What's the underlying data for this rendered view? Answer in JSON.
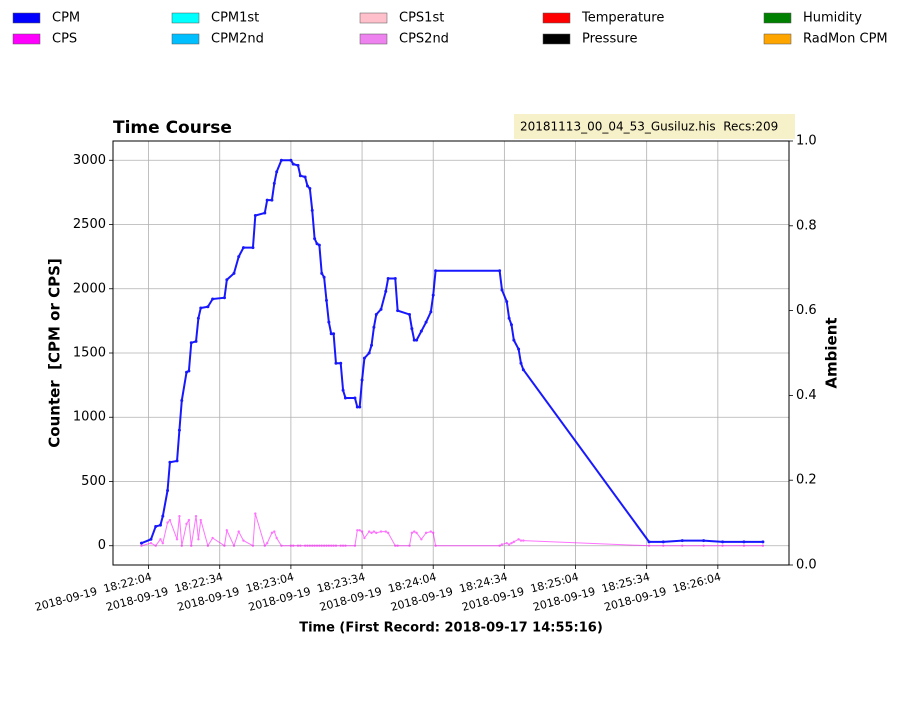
{
  "chart_data": {
    "type": "line",
    "title": "Time Course",
    "file_info": "20181113_00_04_53_Gusiluz.his  Recs:209",
    "xlabel": "Time (First Record: 2018-09-17 14:55:16)",
    "ylabel": "Counter  [CPM or CPS]",
    "y2label": "Ambient",
    "grid": true,
    "x": [
      "2018-09-19 18:22:01",
      "2018-09-19 18:22:05",
      "2018-09-19 18:22:07",
      "2018-09-19 18:22:09",
      "2018-09-19 18:22:10",
      "2018-09-19 18:22:12",
      "2018-09-19 18:22:13",
      "2018-09-19 18:22:16",
      "2018-09-19 18:22:17",
      "2018-09-19 18:22:18",
      "2018-09-19 18:22:20",
      "2018-09-19 18:22:21",
      "2018-09-19 18:22:22",
      "2018-09-19 18:22:24",
      "2018-09-19 18:22:25",
      "2018-09-19 18:22:26",
      "2018-09-19 18:22:29",
      "2018-09-19 18:22:31",
      "2018-09-19 18:22:36",
      "2018-09-19 18:22:37",
      "2018-09-19 18:22:40",
      "2018-09-19 18:22:42",
      "2018-09-19 18:22:44",
      "2018-09-19 18:22:48",
      "2018-09-19 18:22:49",
      "2018-09-19 18:22:53",
      "2018-09-19 18:22:54",
      "2018-09-19 18:22:56",
      "2018-09-19 18:22:57",
      "2018-09-19 18:22:58",
      "2018-09-19 18:23:00",
      "2018-09-19 18:23:04",
      "2018-09-19 18:23:05",
      "2018-09-19 18:23:07",
      "2018-09-19 18:23:08",
      "2018-09-19 18:23:10",
      "2018-09-19 18:23:11",
      "2018-09-19 18:23:12",
      "2018-09-19 18:23:13",
      "2018-09-19 18:23:14",
      "2018-09-19 18:23:15",
      "2018-09-19 18:23:16",
      "2018-09-19 18:23:17",
      "2018-09-19 18:23:18",
      "2018-09-19 18:23:19",
      "2018-09-19 18:23:20",
      "2018-09-19 18:23:21",
      "2018-09-19 18:23:22",
      "2018-09-19 18:23:23",
      "2018-09-19 18:23:25",
      "2018-09-19 18:23:26",
      "2018-09-19 18:23:27",
      "2018-09-19 18:23:31",
      "2018-09-19 18:23:32",
      "2018-09-19 18:23:33",
      "2018-09-19 18:23:34",
      "2018-09-19 18:23:35",
      "2018-09-19 18:23:37",
      "2018-09-19 18:23:38",
      "2018-09-19 18:23:39",
      "2018-09-19 18:23:40",
      "2018-09-19 18:23:42",
      "2018-09-19 18:23:44",
      "2018-09-19 18:23:45",
      "2018-09-19 18:23:48",
      "2018-09-19 18:23:49",
      "2018-09-19 18:23:54",
      "2018-09-19 18:23:55",
      "2018-09-19 18:23:56",
      "2018-09-19 18:23:57",
      "2018-09-19 18:23:59",
      "2018-09-19 18:24:01",
      "2018-09-19 18:24:03",
      "2018-09-19 18:24:04",
      "2018-09-19 18:24:05",
      "2018-09-19 18:24:32",
      "2018-09-19 18:24:33",
      "2018-09-19 18:24:35",
      "2018-09-19 18:24:36",
      "2018-09-19 18:24:37",
      "2018-09-19 18:24:38",
      "2018-09-19 18:24:40",
      "2018-09-19 18:24:41",
      "2018-09-19 18:24:42",
      "2018-09-19 18:25:35",
      "2018-09-19 18:25:41",
      "2018-09-19 18:25:49",
      "2018-09-19 18:25:58",
      "2018-09-19 18:26:06",
      "2018-09-19 18:26:15",
      "2018-09-19 18:26:23"
    ],
    "xlim": [
      "2018-09-19 18:21:49",
      "2018-09-19 18:26:34"
    ],
    "xticks": [
      "2018-09-19  18:22:04",
      "2018-09-19  18:22:34",
      "2018-09-19  18:23:04",
      "2018-09-19  18:23:34",
      "2018-09-19  18:24:04",
      "2018-09-19  18:24:34",
      "2018-09-19  18:25:04",
      "2018-09-19  18:25:34",
      "2018-09-19  18:26:04"
    ],
    "ylim": [
      -150,
      3150
    ],
    "yticks": [
      0,
      500,
      1000,
      1500,
      2000,
      2500,
      3000
    ],
    "y2lim": [
      0,
      1
    ],
    "y2ticks": [
      {
        "value": 0,
        "label": "0.0"
      },
      {
        "value": 0.2,
        "label": "0.2"
      },
      {
        "value": 0.4,
        "label": "0.4"
      },
      {
        "value": 0.6,
        "label": "0.6"
      },
      {
        "value": 0.8,
        "label": "0.8"
      },
      {
        "value": 1,
        "label": "1.0"
      }
    ],
    "series": [
      {
        "name": "CPM",
        "color": "#0000ff",
        "values": [
          20,
          50,
          150,
          160,
          230,
          430,
          650,
          660,
          900,
          1130,
          1350,
          1360,
          1580,
          1590,
          1770,
          1850,
          1860,
          1920,
          1930,
          2070,
          2120,
          2250,
          2320,
          2320,
          2570,
          2590,
          2690,
          2690,
          2820,
          2910,
          3000,
          3000,
          2970,
          2960,
          2880,
          2870,
          2800,
          2780,
          2610,
          2390,
          2350,
          2340,
          2120,
          2090,
          1910,
          1740,
          1650,
          1650,
          1420,
          1420,
          1210,
          1150,
          1150,
          1080,
          1080,
          1290,
          1460,
          1500,
          1560,
          1700,
          1800,
          1840,
          1980,
          2080,
          2080,
          1830,
          1800,
          1690,
          1600,
          1600,
          1670,
          1740,
          1820,
          1950,
          2140,
          2140,
          1990,
          1900,
          1770,
          1720,
          1600,
          1530,
          1420,
          1370,
          30,
          30,
          40,
          40,
          30,
          30,
          30
        ]
      },
      {
        "name": "CPS",
        "color": "#ff00ff",
        "values": [
          0,
          20,
          0,
          50,
          20,
          180,
          200,
          50,
          230,
          0,
          170,
          200,
          0,
          230,
          50,
          200,
          0,
          60,
          0,
          120,
          0,
          110,
          40,
          0,
          250,
          0,
          20,
          100,
          110,
          60,
          0,
          0,
          0,
          0,
          0,
          0,
          0,
          0,
          0,
          0,
          0,
          0,
          0,
          0,
          0,
          0,
          0,
          0,
          0,
          0,
          0,
          0,
          0,
          120,
          120,
          110,
          60,
          110,
          100,
          110,
          100,
          110,
          110,
          100,
          0,
          0,
          0,
          100,
          110,
          100,
          50,
          100,
          110,
          100,
          0,
          0,
          10,
          20,
          10,
          20,
          30,
          50,
          40,
          40,
          0,
          0,
          0,
          0,
          0,
          0,
          0
        ]
      },
      {
        "name": "CPM1st",
        "color": "#00ffff"
      },
      {
        "name": "CPM2nd",
        "color": "#00bfff"
      },
      {
        "name": "CPS1st",
        "color": "#ffc0cb"
      },
      {
        "name": "CPS2nd",
        "color": "#ee82ee"
      },
      {
        "name": "Temperature",
        "color": "#ff0000",
        "axis": "y2"
      },
      {
        "name": "Pressure",
        "color": "#000000",
        "axis": "y2"
      },
      {
        "name": "Humidity",
        "color": "#008000",
        "axis": "y2"
      },
      {
        "name": "RadMon CPM",
        "color": "#ffa500"
      }
    ]
  }
}
